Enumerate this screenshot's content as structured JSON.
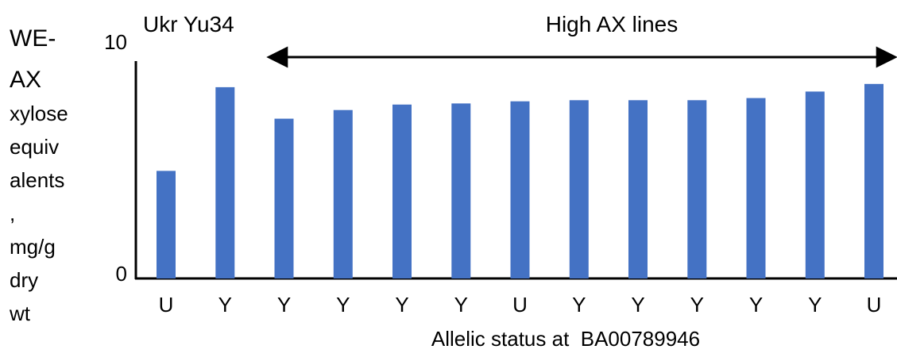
{
  "chart_data": {
    "type": "bar",
    "categories": [
      "U",
      "Y",
      "Y",
      "Y",
      "Y",
      "Y",
      "U",
      "Y",
      "Y",
      "Y",
      "Y",
      "Y",
      "U"
    ],
    "values": [
      4.95,
      8.8,
      7.35,
      7.75,
      8.0,
      8.05,
      8.15,
      8.2,
      8.2,
      8.2,
      8.3,
      8.6,
      8.95
    ],
    "ylim": [
      0,
      10
    ],
    "y_ticks": [
      "0",
      "10"
    ],
    "ylabel_lines": [
      "WE-",
      "AX",
      "xylose",
      "equiv",
      "alents",
      ",",
      "mg/g",
      "dry",
      "wt"
    ],
    "xlabel": "Allelic status at  BA00789946",
    "group_labels": {
      "left": "Ukr Yu34",
      "right": "High AX lines"
    },
    "bar_color": "#4472C4",
    "grid": false,
    "legend": "none"
  }
}
